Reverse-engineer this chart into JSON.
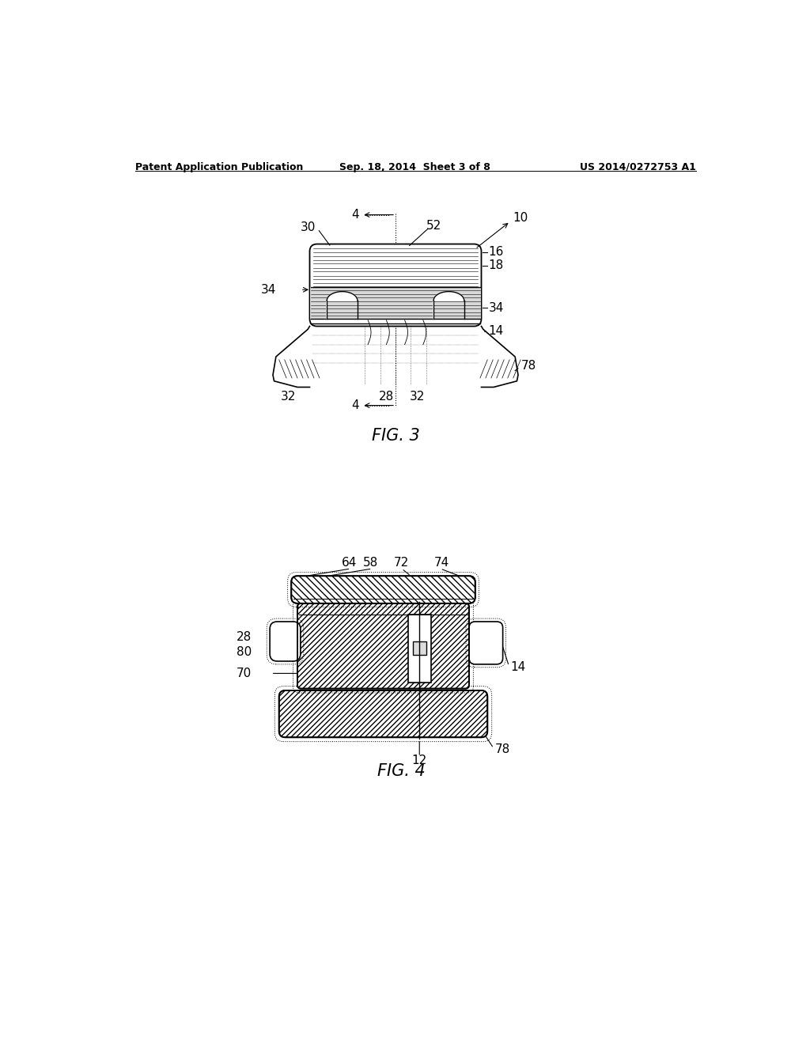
{
  "bg_color": "#ffffff",
  "line_color": "#000000",
  "header_left": "Patent Application Publication",
  "header_center": "Sep. 18, 2014  Sheet 3 of 8",
  "header_right": "US 2014/0272753 A1",
  "fig3_label": "FIG. 3",
  "fig4_label": "FIG. 4",
  "header_font_size": 9,
  "ref_font_size": 11,
  "fig_label_font_size": 15
}
